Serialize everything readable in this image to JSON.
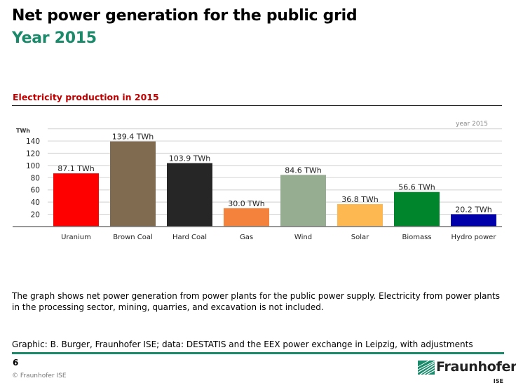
{
  "header": {
    "title": "Net power generation for the public grid",
    "subtitle": "Year 2015"
  },
  "chart_section_title": "Electricity production in 2015",
  "chart_data": {
    "type": "bar",
    "title": "Electricity production in 2015",
    "annotation": "year 2015",
    "xlabel": "",
    "ylabel": "TWh",
    "ylim": [
      0,
      160
    ],
    "yticks": [
      20,
      40,
      60,
      80,
      100,
      120,
      140
    ],
    "grid": true,
    "categories": [
      "Uranium",
      "Brown Coal",
      "Hard Coal",
      "Gas",
      "Wind",
      "Solar",
      "Biomass",
      "Hydro power"
    ],
    "values": [
      87.1,
      139.4,
      103.9,
      30.0,
      84.6,
      36.8,
      56.6,
      20.2
    ],
    "data_labels": [
      "87.1 TWh",
      "139.4 TWh",
      "103.9 TWh",
      "30.0 TWh",
      "84.6 TWh",
      "36.8 TWh",
      "56.6 TWh",
      "20.2 TWh"
    ],
    "colors": [
      "#ff0000",
      "#806a50",
      "#262626",
      "#f5823c",
      "#97ad91",
      "#fdb852",
      "#00852d",
      "#0000aa"
    ]
  },
  "description": "The graph shows net power generation from power plants for the public power supply. Electricity from power plants in the processing sector, mining, quarries, and excavation is not included.",
  "credit": "Graphic: B. Burger, Fraunhofer ISE; data: DESTATIS and the EEX power exchange in Leipzig, with adjustments",
  "footer": {
    "page_number": "6",
    "copyright": "© Fraunhofer ISE",
    "logo_text": "Fraunhofer",
    "logo_sub": "ISE"
  },
  "colors": {
    "accent_green": "#1a8a6a",
    "chart_title_red": "#c00000"
  }
}
